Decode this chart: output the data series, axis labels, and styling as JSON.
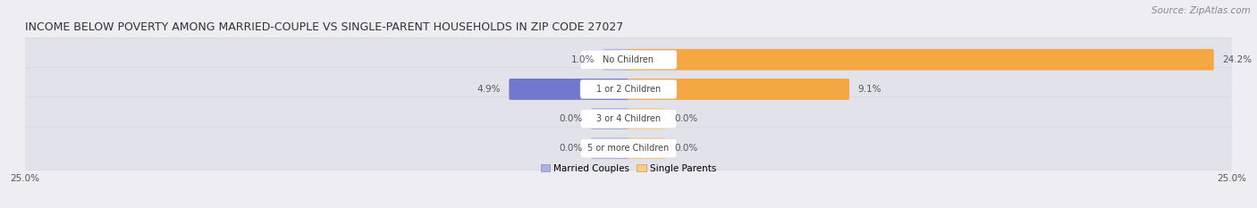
{
  "title": "INCOME BELOW POVERTY AMONG MARRIED-COUPLE VS SINGLE-PARENT HOUSEHOLDS IN ZIP CODE 27027",
  "source": "Source: ZipAtlas.com",
  "categories": [
    "No Children",
    "1 or 2 Children",
    "3 or 4 Children",
    "5 or more Children"
  ],
  "married_values": [
    1.0,
    4.9,
    0.0,
    0.0
  ],
  "single_values": [
    24.2,
    9.1,
    0.0,
    0.0
  ],
  "axis_max": 25.0,
  "married_color_dark": "#7279cc",
  "married_color_light": "#aab2df",
  "single_color_dark": "#f5a742",
  "single_color_light": "#f8cc90",
  "background_color": "#ededf2",
  "bar_bg_color": "#e2e2ea",
  "bar_bg_edge": "#d5d5e0",
  "title_fontsize": 9.0,
  "source_fontsize": 7.5,
  "label_fontsize": 7.5,
  "category_fontsize": 7.0,
  "axis_label_fontsize": 7.5,
  "legend_fontsize": 7.5,
  "legend_married": "Married Couples",
  "legend_single": "Single Parents",
  "zero_bar_size": 1.5,
  "center_label_bg": "#ffffff",
  "value_color": "#555555"
}
